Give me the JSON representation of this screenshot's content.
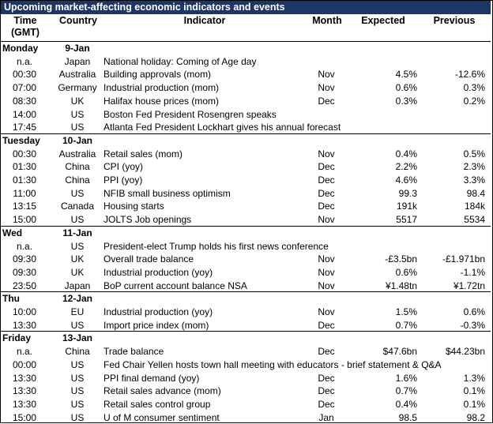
{
  "title": "Upcoming market-affecting economic indicators and events",
  "columns": {
    "time_line1": "Time",
    "time_line2": "(GMT)",
    "country": "Country",
    "indicator": "Indicator",
    "month": "Month",
    "expected": "Expected",
    "previous": "Previous"
  },
  "days": [
    {
      "day": "Monday",
      "date": "9-Jan",
      "rows": [
        {
          "time": "n.a.",
          "country": "Japan",
          "indicator": "National holiday:  Coming of Age day",
          "month": "",
          "expected": "",
          "previous": ""
        },
        {
          "time": "00:30",
          "country": "Australia",
          "indicator": "Building approvals (mom)",
          "month": "Nov",
          "expected": "4.5%",
          "previous": "-12.6%"
        },
        {
          "time": "07:00",
          "country": "Germany",
          "indicator": "Industrial production (mom)",
          "month": "Nov",
          "expected": "0.6%",
          "previous": "0.3%"
        },
        {
          "time": "08:30",
          "country": "UK",
          "indicator": "Halifax house prices (mom)",
          "month": "Dec",
          "expected": "0.3%",
          "previous": "0.2%"
        },
        {
          "time": "14:00",
          "country": "US",
          "indicator": "Boston Fed President Rosengren speaks",
          "month": "",
          "expected": "",
          "previous": ""
        },
        {
          "time": "17:45",
          "country": "US",
          "indicator": "Atlanta Fed President Lockhart gives his annual forecast",
          "month": "",
          "expected": "",
          "previous": ""
        }
      ]
    },
    {
      "day": "Tuesday",
      "date": "10-Jan",
      "rows": [
        {
          "time": "00:30",
          "country": "Australia",
          "indicator": "Retail sales (mom)",
          "month": "Nov",
          "expected": "0.4%",
          "previous": "0.5%"
        },
        {
          "time": "01:30",
          "country": "China",
          "indicator": "CPI (yoy)",
          "month": "Dec",
          "expected": "2.2%",
          "previous": "2.3%"
        },
        {
          "time": "01:30",
          "country": "China",
          "indicator": "PPI (yoy)",
          "month": "Dec",
          "expected": "4.6%",
          "previous": "3.3%"
        },
        {
          "time": "11:00",
          "country": "US",
          "indicator": "NFIB small business optimism",
          "month": "Dec",
          "expected": "99.3",
          "previous": "98.4"
        },
        {
          "time": "13:15",
          "country": "Canada",
          "indicator": "Housing starts",
          "month": "Dec",
          "expected": "191k",
          "previous": "184k"
        },
        {
          "time": "15:00",
          "country": "US",
          "indicator": "JOLTS Job openings",
          "month": "Nov",
          "expected": "5517",
          "previous": "5534"
        }
      ]
    },
    {
      "day": "Wed",
      "date": "11-Jan",
      "rows": [
        {
          "time": "n.a.",
          "country": "US",
          "indicator": "President-elect Trump holds his first news conference",
          "month": "",
          "expected": "",
          "previous": ""
        },
        {
          "time": "09:30",
          "country": "UK",
          "indicator": "Overall trade balance",
          "month": "Nov",
          "expected": "-£3.5bn",
          "previous": "-£1.971bn"
        },
        {
          "time": "09:30",
          "country": "UK",
          "indicator": "Industrial production (yoy)",
          "month": "Nov",
          "expected": "0.6%",
          "previous": "-1.1%"
        },
        {
          "time": "23:50",
          "country": "Japan",
          "indicator": "BoP current account balance NSA",
          "month": "Nov",
          "expected": "¥1.48tn",
          "previous": "¥1.72tn"
        }
      ]
    },
    {
      "day": "Thu",
      "date": "12-Jan",
      "rows": [
        {
          "time": "10:00",
          "country": "EU",
          "indicator": "Industrial production (yoy)",
          "month": "Nov",
          "expected": "1.5%",
          "previous": "0.6%"
        },
        {
          "time": "13:30",
          "country": "US",
          "indicator": "Import price index (mom)",
          "month": "Dec",
          "expected": "0.7%",
          "previous": "-0.3%"
        }
      ]
    },
    {
      "day": "Friday",
      "date": "13-Jan",
      "rows": [
        {
          "time": "n.a.",
          "country": "China",
          "indicator": "Trade balance",
          "month": "Dec",
          "expected": "$47.6bn",
          "previous": "$44.23bn"
        },
        {
          "time": "00:00",
          "country": "US",
          "indicator": "Fed Chair Yellen hosts town hall meeting with educators - brief statement & Q&A",
          "month": "",
          "expected": "",
          "previous": ""
        },
        {
          "time": "13:30",
          "country": "US",
          "indicator": "PPI final demand (yoy)",
          "month": "Dec",
          "expected": "1.6%",
          "previous": "1.3%"
        },
        {
          "time": "13:30",
          "country": "US",
          "indicator": "Retail sales advance (mom)",
          "month": "Dec",
          "expected": "0.7%",
          "previous": "0.1%"
        },
        {
          "time": "13:30",
          "country": "US",
          "indicator": "Retail sales control group",
          "month": "Dec",
          "expected": "0.4%",
          "previous": "0.1%"
        },
        {
          "time": "15:00",
          "country": "US",
          "indicator": "U of M consumer sentiment",
          "month": "Jan",
          "expected": "98.5",
          "previous": "98.2"
        }
      ]
    }
  ]
}
